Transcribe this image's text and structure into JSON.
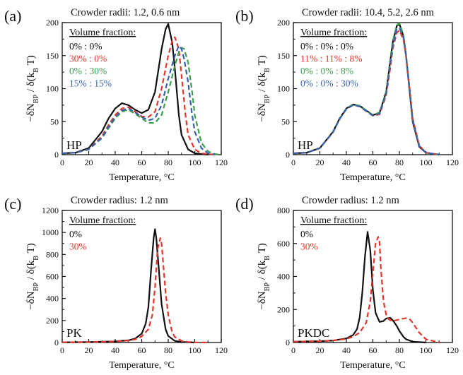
{
  "colors": {
    "black": "#111111",
    "red": "#e8352b",
    "green": "#3aa04a",
    "blue": "#3a5fb0"
  },
  "chart_data": [
    {
      "panel_label": "(a)",
      "corner_label": "HP",
      "header": "Crowder radii: 1.2, 0.6 nm",
      "legend_title": "Volume fraction:",
      "xlabel": "Temperature, °C",
      "ylabel": "−δN_BP / δ(k_B T)",
      "type": "line",
      "xlim": [
        0,
        120
      ],
      "ylim": [
        0,
        200
      ],
      "xticks": [
        0,
        20,
        40,
        60,
        80,
        100,
        120
      ],
      "yticks": [
        0,
        50,
        100,
        150,
        200
      ],
      "series": [
        {
          "name": "0% : 0%",
          "color": "black",
          "dash": false,
          "x": [
            0,
            10,
            20,
            30,
            35,
            40,
            45,
            50,
            55,
            60,
            65,
            70,
            75,
            78,
            80,
            83,
            85,
            88,
            90,
            95,
            100,
            105,
            110
          ],
          "y": [
            2,
            3,
            10,
            35,
            55,
            70,
            78,
            75,
            68,
            63,
            68,
            95,
            160,
            190,
            198,
            170,
            130,
            60,
            30,
            8,
            2,
            1,
            0
          ]
        },
        {
          "name": "30% : 0%",
          "color": "red",
          "dash": true,
          "x": [
            0,
            10,
            20,
            30,
            35,
            40,
            45,
            50,
            55,
            60,
            65,
            70,
            75,
            80,
            83,
            85,
            88,
            90,
            93,
            95,
            100,
            105,
            110,
            115
          ],
          "y": [
            2,
            3,
            8,
            28,
            45,
            60,
            70,
            72,
            65,
            58,
            57,
            65,
            100,
            150,
            172,
            178,
            160,
            120,
            60,
            30,
            8,
            2,
            1,
            0
          ]
        },
        {
          "name": "0% : 30%",
          "color": "green",
          "dash": true,
          "x": [
            0,
            10,
            20,
            30,
            35,
            40,
            45,
            50,
            55,
            60,
            65,
            70,
            75,
            80,
            85,
            88,
            90,
            92,
            95,
            98,
            100,
            105,
            110,
            115,
            120
          ],
          "y": [
            2,
            3,
            8,
            25,
            40,
            55,
            65,
            68,
            62,
            55,
            48,
            48,
            60,
            95,
            135,
            155,
            162,
            160,
            140,
            95,
            60,
            18,
            5,
            1,
            0
          ]
        },
        {
          "name": "15% : 15%",
          "color": "blue",
          "dash": true,
          "x": [
            0,
            10,
            20,
            30,
            35,
            40,
            45,
            50,
            55,
            60,
            65,
            70,
            75,
            80,
            85,
            88,
            90,
            92,
            95,
            98,
            100,
            105,
            110,
            115
          ],
          "y": [
            2,
            3,
            8,
            26,
            42,
            57,
            67,
            70,
            64,
            57,
            52,
            55,
            75,
            115,
            150,
            165,
            160,
            145,
            110,
            60,
            35,
            10,
            2,
            0
          ]
        }
      ]
    },
    {
      "panel_label": "(b)",
      "corner_label": "HP",
      "header": "Crowder radii: 10.4, 5.2, 2.6 nm",
      "legend_title": "Volume fraction:",
      "xlabel": "Temperature, °C",
      "ylabel": "−δN_BP / δ(k_B T)",
      "type": "line",
      "xlim": [
        0,
        120
      ],
      "ylim": [
        0,
        200
      ],
      "xticks": [
        0,
        20,
        40,
        60,
        80,
        100,
        120
      ],
      "yticks": [
        0,
        50,
        100,
        150,
        200
      ],
      "series": [
        {
          "name": "0% : 0% : 0%",
          "color": "black",
          "dash": false,
          "x": [
            0,
            10,
            20,
            30,
            35,
            40,
            45,
            50,
            55,
            60,
            65,
            70,
            73,
            75,
            78,
            80,
            83,
            85,
            88,
            90,
            95,
            100,
            110
          ],
          "y": [
            2,
            3,
            10,
            35,
            55,
            70,
            76,
            74,
            67,
            60,
            63,
            95,
            140,
            170,
            195,
            198,
            180,
            150,
            90,
            50,
            12,
            3,
            0
          ]
        },
        {
          "name": "11% : 11% : 8%",
          "color": "red",
          "dash": true,
          "x": [
            0,
            10,
            20,
            30,
            35,
            40,
            45,
            50,
            55,
            60,
            65,
            70,
            73,
            75,
            78,
            80,
            83,
            85,
            88,
            90,
            95,
            100,
            110
          ],
          "y": [
            2,
            3,
            10,
            35,
            55,
            70,
            75,
            73,
            66,
            59,
            61,
            90,
            130,
            160,
            185,
            188,
            175,
            150,
            95,
            55,
            14,
            3,
            0
          ]
        },
        {
          "name": "0% : 0% : 8%",
          "color": "green",
          "dash": true,
          "x": [
            0,
            10,
            20,
            30,
            35,
            40,
            45,
            50,
            55,
            60,
            65,
            70,
            73,
            75,
            78,
            80,
            83,
            85,
            88,
            90,
            95,
            100,
            110
          ],
          "y": [
            2,
            3,
            10,
            35,
            55,
            70,
            76,
            74,
            67,
            60,
            64,
            96,
            142,
            172,
            196,
            199,
            182,
            152,
            92,
            52,
            13,
            3,
            0
          ]
        },
        {
          "name": "0% : 0% : 30%",
          "color": "blue",
          "dash": true,
          "x": [
            0,
            10,
            20,
            30,
            35,
            40,
            45,
            50,
            55,
            60,
            65,
            70,
            73,
            75,
            78,
            80,
            83,
            85,
            88,
            90,
            95,
            100,
            110
          ],
          "y": [
            2,
            3,
            10,
            34,
            54,
            69,
            75,
            73,
            66,
            59,
            62,
            92,
            136,
            165,
            190,
            192,
            178,
            150,
            93,
            53,
            13,
            3,
            0
          ]
        }
      ]
    },
    {
      "panel_label": "(c)",
      "corner_label": "PK",
      "header": "Crowder radius: 1.2 nm",
      "legend_title": "Volume fraction:",
      "xlabel": "Temperature, °C",
      "ylabel": "−δN_BP / δ(k_B T)",
      "type": "line",
      "xlim": [
        0,
        120
      ],
      "ylim": [
        0,
        1200
      ],
      "xticks": [
        0,
        20,
        40,
        60,
        80,
        100,
        120
      ],
      "yticks": [
        0,
        200,
        400,
        600,
        800,
        1000,
        1200
      ],
      "series": [
        {
          "name": "0%",
          "color": "black",
          "dash": false,
          "x": [
            0,
            20,
            40,
            50,
            55,
            60,
            63,
            65,
            67,
            69,
            70,
            71,
            73,
            75,
            78,
            80,
            85,
            90,
            100
          ],
          "y": [
            2,
            4,
            10,
            20,
            35,
            80,
            170,
            320,
            650,
            950,
            1030,
            950,
            650,
            350,
            120,
            60,
            15,
            5,
            0
          ]
        },
        {
          "name": "30%",
          "color": "red",
          "dash": true,
          "x": [
            0,
            20,
            40,
            50,
            55,
            60,
            65,
            68,
            70,
            72,
            74,
            75,
            76,
            78,
            80,
            83,
            85,
            90,
            95,
            100,
            110
          ],
          "y": [
            2,
            4,
            9,
            18,
            28,
            55,
            120,
            250,
            500,
            850,
            950,
            900,
            750,
            450,
            250,
            90,
            50,
            15,
            5,
            2,
            0
          ]
        }
      ]
    },
    {
      "panel_label": "(d)",
      "corner_label": "PKDC",
      "header": "Crowder radius: 1.2 nm",
      "legend_title": "Volume fraction:",
      "xlabel": "Temperature, °C",
      "ylabel": "−δN_BP / δ(k_B T)",
      "type": "line",
      "xlim": [
        0,
        120
      ],
      "ylim": [
        0,
        800
      ],
      "xticks": [
        0,
        20,
        40,
        60,
        80,
        100,
        120
      ],
      "yticks": [
        0,
        200,
        400,
        600,
        800
      ],
      "series": [
        {
          "name": "0%",
          "color": "black",
          "dash": false,
          "x": [
            0,
            20,
            30,
            40,
            45,
            48,
            50,
            52,
            54,
            56,
            58,
            60,
            62,
            65,
            68,
            70,
            73,
            75,
            78,
            80,
            83,
            85,
            90,
            100
          ],
          "y": [
            5,
            8,
            12,
            25,
            45,
            80,
            150,
            300,
            520,
            670,
            560,
            320,
            180,
            125,
            130,
            145,
            150,
            135,
            100,
            70,
            35,
            20,
            5,
            0
          ]
        },
        {
          "name": "30%",
          "color": "red",
          "dash": true,
          "x": [
            0,
            20,
            30,
            40,
            45,
            50,
            55,
            58,
            60,
            62,
            64,
            65,
            66,
            68,
            70,
            72,
            75,
            80,
            85,
            88,
            90,
            95,
            100,
            110
          ],
          "y": [
            5,
            8,
            12,
            22,
            35,
            60,
            120,
            250,
            420,
            600,
            640,
            610,
            450,
            250,
            170,
            140,
            130,
            140,
            148,
            140,
            120,
            60,
            20,
            0
          ]
        }
      ]
    }
  ]
}
